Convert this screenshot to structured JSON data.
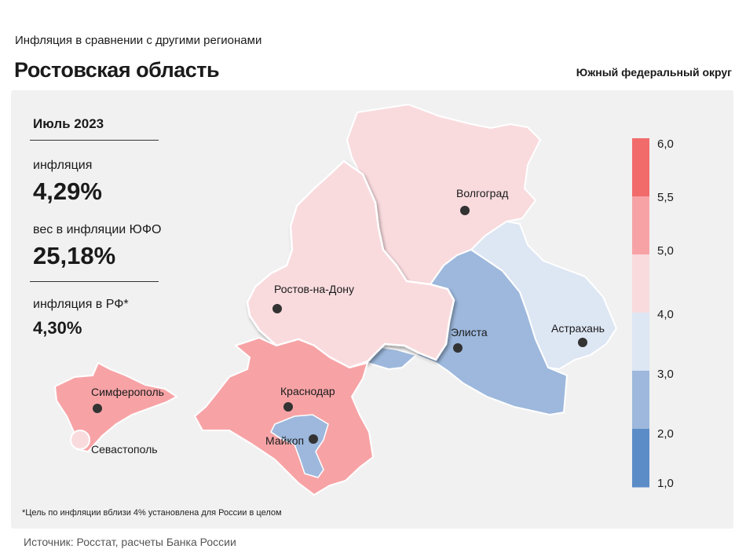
{
  "header": {
    "subtitle": "Инфляция в сравнении с другими регионами",
    "title": "Ростовская область",
    "district": "Южный федеральный округ"
  },
  "stats": {
    "period": "Июль 2023",
    "inflation_label": "инфляция",
    "inflation_value": "4,29%",
    "weight_label": "вес в инфляции ЮФО",
    "weight_value": "25,18%",
    "rf_label": "инфляция в РФ*",
    "rf_value": "4,30%"
  },
  "legend": {
    "ticks": [
      "6,0",
      "5,5",
      "5,0",
      "4,0",
      "3,0",
      "2,0",
      "1,0"
    ],
    "bins": [
      {
        "from": 5.5,
        "to": 6.0,
        "color": "#f26b6b"
      },
      {
        "from": 5.0,
        "to": 5.5,
        "color": "#f7a3a6"
      },
      {
        "from": 4.0,
        "to": 5.0,
        "color": "#f9dbde"
      },
      {
        "from": 3.0,
        "to": 4.0,
        "color": "#dde6f3"
      },
      {
        "from": 2.0,
        "to": 3.0,
        "color": "#9db8dc"
      },
      {
        "from": 1.0,
        "to": 2.0,
        "color": "#5b8cc8"
      }
    ]
  },
  "map": {
    "regions": [
      {
        "name": "Волгоград",
        "icon": "city-marker-icon",
        "color": "#f9dbde",
        "highlighted": false
      },
      {
        "name": "Ростов-на-Дону",
        "icon": "city-marker-icon",
        "color": "#f9dbde",
        "highlighted": true
      },
      {
        "name": "Элиста",
        "icon": "city-marker-icon",
        "color": "#9db8dc",
        "highlighted": false
      },
      {
        "name": "Астрахань",
        "icon": "city-marker-icon",
        "color": "#dde6f3",
        "highlighted": false
      },
      {
        "name": "Краснодар",
        "icon": "city-marker-icon",
        "color": "#f7a3a6",
        "highlighted": false
      },
      {
        "name": "Майкоп",
        "icon": "city-marker-icon",
        "color": "#9db8dc",
        "highlighted": false
      },
      {
        "name": "Симферополь",
        "icon": "city-marker-icon",
        "color": "#f7a3a6",
        "highlighted": false
      },
      {
        "name": "Севастополь",
        "icon": "city-circle-icon",
        "color": "#f9dbde",
        "highlighted": false
      }
    ]
  },
  "footnote": "*Цель по инфляции вблизи 4% установлена для России в целом",
  "source": "Источник: Росстат, расчеты Банка России"
}
